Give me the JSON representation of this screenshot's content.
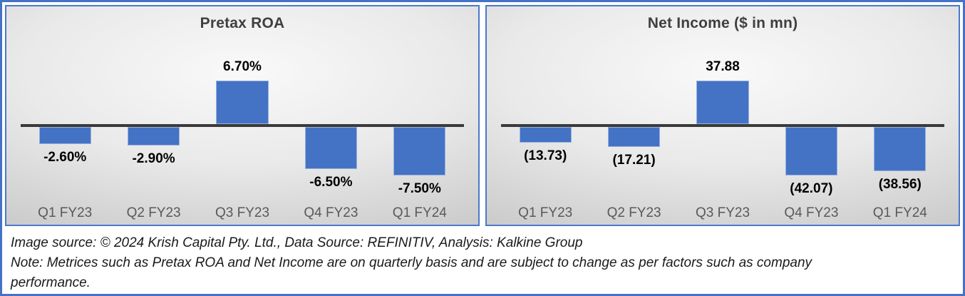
{
  "colors": {
    "bar": "#4472C4",
    "axis_line": "#3a3a3a",
    "frame_border": "#4472C4",
    "panel_border": "#4b79cb",
    "title_text": "#3f3f3f",
    "category_label_text": "#595959",
    "data_label_text": "#000000",
    "footer_text": "#1a1a1a",
    "panel_bg_center": "#f9f9f9",
    "panel_bg_edge": "#c9c9c9"
  },
  "chart_data": [
    {
      "type": "bar",
      "title": "Pretax ROA",
      "categories": [
        "Q1 FY23",
        "Q2 FY23",
        "Q3 FY23",
        "Q4 FY23",
        "Q1 FY24"
      ],
      "values": [
        -2.6,
        -2.9,
        6.7,
        -6.5,
        -7.5
      ],
      "data_labels": [
        "-2.60%",
        "-2.90%",
        "6.70%",
        "-6.50%",
        "-7.50%"
      ],
      "unit": "%",
      "xlabel": "",
      "ylabel": "",
      "ylim": [
        -8.5,
        8
      ],
      "grid": false,
      "legend": "none",
      "bar_color": "#4472C4"
    },
    {
      "type": "bar",
      "title": "Net Income ($ in mn)",
      "categories": [
        "Q1 FY23",
        "Q2 FY23",
        "Q3 FY23",
        "Q4 FY23",
        "Q1 FY24"
      ],
      "values": [
        -13.73,
        -17.21,
        37.88,
        -42.07,
        -38.56
      ],
      "data_labels": [
        "(13.73)",
        "(17.21)",
        "37.88",
        "(42.07)",
        "(38.56)"
      ],
      "unit": "$ mn",
      "xlabel": "",
      "ylabel": "",
      "ylim": [
        -47,
        45
      ],
      "grid": false,
      "legend": "none",
      "bar_color": "#4472C4"
    }
  ],
  "footer": {
    "lines": [
      "Image source: © 2024 Krish Capital Pty. Ltd., Data Source: REFINITIV, Analysis: Kalkine Group",
      "Note: Metrices such as Pretax ROA and Net Income are on quarterly basis and are subject to change as per factors such as company",
      "performance."
    ]
  }
}
